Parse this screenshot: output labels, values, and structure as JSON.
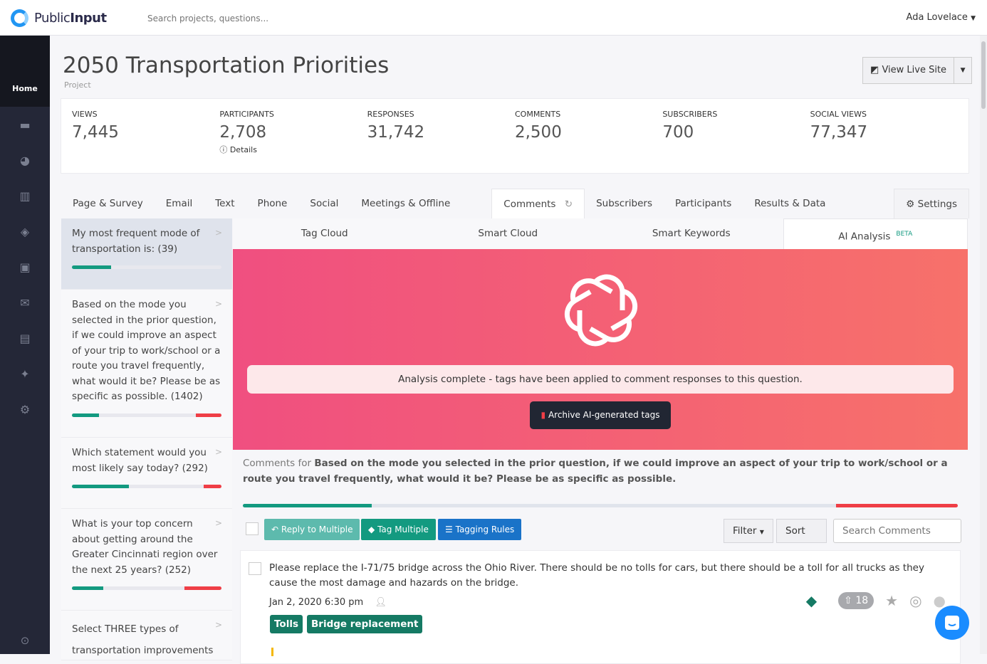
{
  "header": {
    "brand_light": "Public",
    "brand_bold": "Input",
    "search_placeholder": "Search projects, questions...",
    "user": "Ada Lovelace"
  },
  "sidebar": {
    "home": "Home",
    "icons": [
      "calendar-icon",
      "file-chart-icon",
      "map-icon",
      "share-icon",
      "contacts-icon",
      "mail-icon",
      "image-icon",
      "sparkles-icon",
      "cogs-icon"
    ]
  },
  "project": {
    "title": "2050 Transportation Priorities",
    "subtitle": "Project",
    "view_live": "View Live Site"
  },
  "stats": [
    {
      "label": "Views",
      "value": "7,445"
    },
    {
      "label": "Participants",
      "value": "2,708",
      "detail": "Details"
    },
    {
      "label": "Responses",
      "value": "31,742"
    },
    {
      "label": "Comments",
      "value": "2,500"
    },
    {
      "label": "Subscribers",
      "value": "700"
    },
    {
      "label": "Social Views",
      "value": "77,347"
    }
  ],
  "tabs": [
    "Page & Survey",
    "Email",
    "Text",
    "Phone",
    "Social",
    "Meetings & Offline",
    "Comments",
    "Subscribers",
    "Participants",
    "Results & Data"
  ],
  "settings": "Settings",
  "questions": [
    {
      "text": "My most frequent mode of transportation is: (39)",
      "positive_pct": 26,
      "negative_pct": 0
    },
    {
      "text": "Based on the mode you selected in the prior question, if we could improve an aspect of your trip to work/school or a route you travel frequently, what would it be? Please be as specific as possible. (1402)",
      "positive_pct": 18,
      "negative_pct": 17
    },
    {
      "text": "Which statement would you most likely say today? (292)",
      "positive_pct": 38,
      "negative_pct": 12
    },
    {
      "text": "What is your top concern about getting around the Greater Cincinnati region over the next 25 years? (252)",
      "positive_pct": 21,
      "negative_pct": 25
    },
    {
      "text": "Select THREE types of transportation improvements that you think would be"
    }
  ],
  "subtabs": [
    "Tag Cloud",
    "Smart Cloud",
    "Smart Keywords",
    "AI Analysis"
  ],
  "beta": "BETA",
  "banner": {
    "message": "Analysis complete - tags have been applied to comment responses to this question.",
    "archive": "Archive AI-generated tags"
  },
  "comments_for": {
    "prefix": "Comments for ",
    "question": "Based on the mode you selected in the prior question, if we could improve an aspect of your trip to work/school or a route you travel frequently, what would it be? Please be as specific as possible.",
    "positive_pct": 18,
    "negative_pct": 17
  },
  "toolbar": {
    "reply": "Reply to Multiple",
    "tag": "Tag Multiple",
    "rules": "Tagging Rules",
    "filter": "Filter",
    "sort": "Sort",
    "search_placeholder": "Search Comments"
  },
  "comment": {
    "text": "Please replace the I-71/75 bridge across the Ohio River. There should be no tolls for cars, but there should be a toll for all trucks as they cause the most damage and hazards on the bridge.",
    "date": "Jan 2, 2020 6:30 pm",
    "tags": [
      "Tolls",
      "Bridge replacement"
    ],
    "votes": "18"
  },
  "colors": {
    "positive": "#139a80",
    "negative": "#ef3e46",
    "banner_start": "#f04f80",
    "banner_end": "#f7716a",
    "tag": "#157a64",
    "primary": "#1a73c8"
  }
}
